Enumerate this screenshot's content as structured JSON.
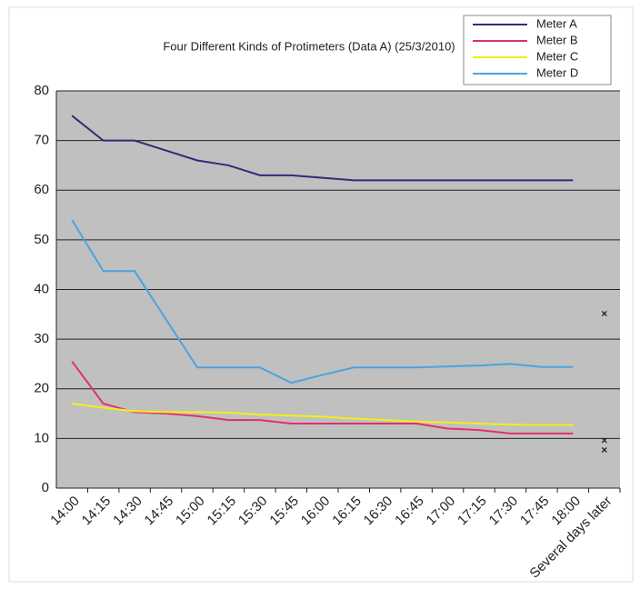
{
  "chart_data": {
    "type": "line",
    "title": "Four Different Kinds of Protimeters (Data A) (25/3/2010)",
    "categories": [
      "14:00",
      "14:15",
      "14:30",
      "14:45",
      "15:00",
      "15:15",
      "15:30",
      "15:45",
      "16:00",
      "16:15",
      "16:30",
      "16:45",
      "17:00",
      "17:15",
      "17:30",
      "17:45",
      "18:00",
      "Several days later"
    ],
    "series": [
      {
        "name": "Meter A",
        "color": "#2e2c7a",
        "values": [
          75,
          70,
          70,
          68,
          66,
          65,
          63,
          63,
          62.5,
          62,
          62,
          62,
          62,
          62,
          62,
          62,
          62,
          35
        ]
      },
      {
        "name": "Meter B",
        "color": "#e0306e",
        "values": [
          25.5,
          17,
          15.3,
          15,
          14.5,
          13.7,
          13.7,
          13,
          13,
          13,
          13,
          13,
          12,
          11.7,
          11,
          11,
          11,
          9.5
        ]
      },
      {
        "name": "Meter C",
        "color": "#f2ee1c",
        "values": [
          17,
          16.2,
          15.5,
          15.3,
          15.3,
          15.2,
          14.8,
          14.6,
          14.4,
          14,
          13.7,
          13.4,
          13.2,
          13,
          12.8,
          12.7,
          12.7,
          7.5
        ]
      },
      {
        "name": "Meter D",
        "color": "#4aa3e0",
        "values": [
          54,
          43.7,
          43.7,
          34,
          24.3,
          24.3,
          24.3,
          21.2,
          22.8,
          24.3,
          24.3,
          24.3,
          24.5,
          24.7,
          25,
          24.4,
          24.4,
          null
        ]
      }
    ],
    "ylim": [
      0,
      80
    ],
    "yticks": [
      0,
      10,
      20,
      30,
      40,
      50,
      60,
      70,
      80
    ],
    "grid": true
  }
}
